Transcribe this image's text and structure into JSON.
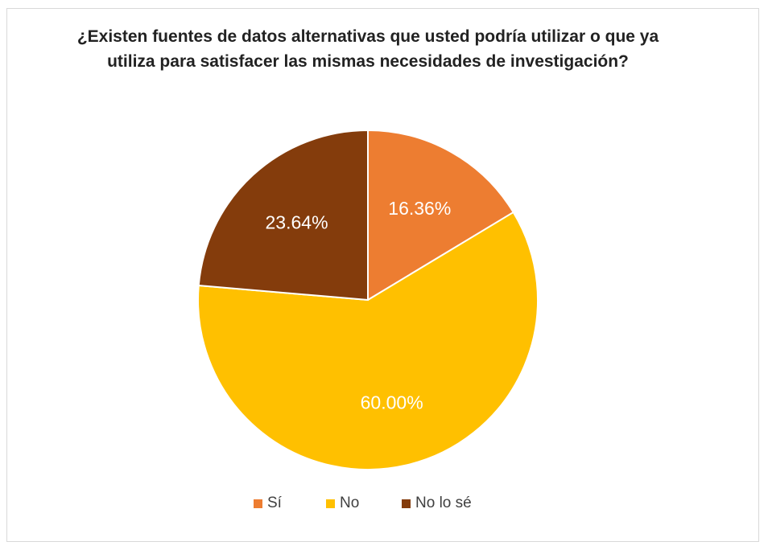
{
  "chart_data": {
    "type": "pie",
    "title": "¿Existen fuentes de datos alternativas que usted podría utilizar o que ya utiliza para satisfacer las mismas necesidades de investigación?",
    "categories": [
      "Sí",
      "No",
      "No lo sé"
    ],
    "values": [
      16.36,
      60.0,
      23.64
    ],
    "data_labels": [
      "16.36%",
      "60.00%",
      "23.64%"
    ],
    "colors": [
      "#ed7d31",
      "#ffc000",
      "#843c0c"
    ],
    "legend_position": "bottom"
  }
}
